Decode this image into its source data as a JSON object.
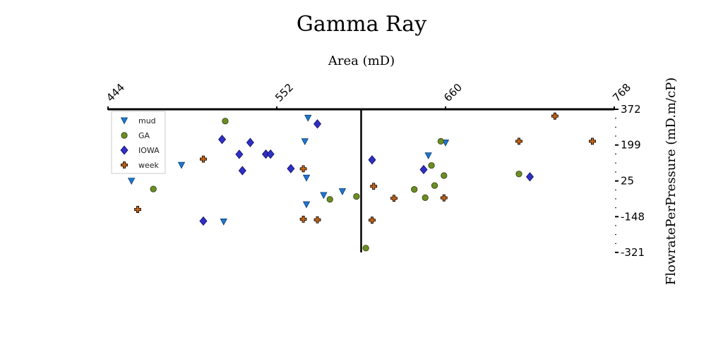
{
  "chart_data": {
    "type": "scatter",
    "title": "Gamma Ray",
    "xlabel": "Area (mD)",
    "ylabel": "FlowratePerPressure (mD.m/cP)",
    "xlim": [
      444,
      768
    ],
    "ylim": [
      -321,
      372
    ],
    "x_ticks": [
      "444",
      "552",
      "660",
      "768"
    ],
    "y_ticks": [
      "372",
      "199",
      "25",
      "-148",
      "-321"
    ],
    "x_tick_values": [
      444,
      552,
      660,
      768
    ],
    "y_tick_values": [
      372,
      199,
      25,
      -148,
      -321
    ],
    "x_axis_position": "top",
    "y_axis_position": "right",
    "spine_vertical_x": 606,
    "grid": false,
    "legend_position": "upper-left",
    "series": [
      {
        "name": "mud",
        "marker": "triangle-down",
        "color": "#1f77d4",
        "points": [
          [
            459,
            25
          ],
          [
            491,
            102
          ],
          [
            518,
            -172
          ],
          [
            571,
            40
          ],
          [
            571,
            -89
          ],
          [
            572,
            330
          ],
          [
            570,
            216
          ],
          [
            582,
            -44
          ],
          [
            594,
            -26
          ],
          [
            649,
            148
          ],
          [
            660,
            210
          ]
        ]
      },
      {
        "name": "GA",
        "marker": "circle",
        "color": "#6b8e23",
        "points": [
          [
            473,
            -14
          ],
          [
            519,
            315
          ],
          [
            586,
            -64
          ],
          [
            603,
            -50
          ],
          [
            609,
            -300
          ],
          [
            640,
            -16
          ],
          [
            647,
            -56
          ],
          [
            651,
            100
          ],
          [
            653,
            3
          ],
          [
            657,
            217
          ],
          [
            659,
            51
          ],
          [
            707,
            59
          ]
        ]
      },
      {
        "name": "IOWA",
        "marker": "diamond",
        "color": "#2f2fc8",
        "points": [
          [
            505,
            -169
          ],
          [
            517,
            226
          ],
          [
            528,
            154
          ],
          [
            535,
            211
          ],
          [
            530,
            75
          ],
          [
            545,
            155
          ],
          [
            548,
            155
          ],
          [
            561,
            85
          ],
          [
            578,
            301
          ],
          [
            613,
            127
          ],
          [
            646,
            80
          ],
          [
            714,
            45
          ]
        ]
      },
      {
        "name": "week",
        "marker": "plus",
        "color": "#c86414",
        "points": [
          [
            463,
            -113
          ],
          [
            505,
            131
          ],
          [
            569,
            84
          ],
          [
            569,
            -160
          ],
          [
            578,
            -163
          ],
          [
            613,
            -165
          ],
          [
            614,
            -1
          ],
          [
            627,
            -59
          ],
          [
            659,
            -57
          ],
          [
            707,
            217
          ],
          [
            730,
            339
          ],
          [
            754,
            217
          ]
        ]
      }
    ]
  }
}
